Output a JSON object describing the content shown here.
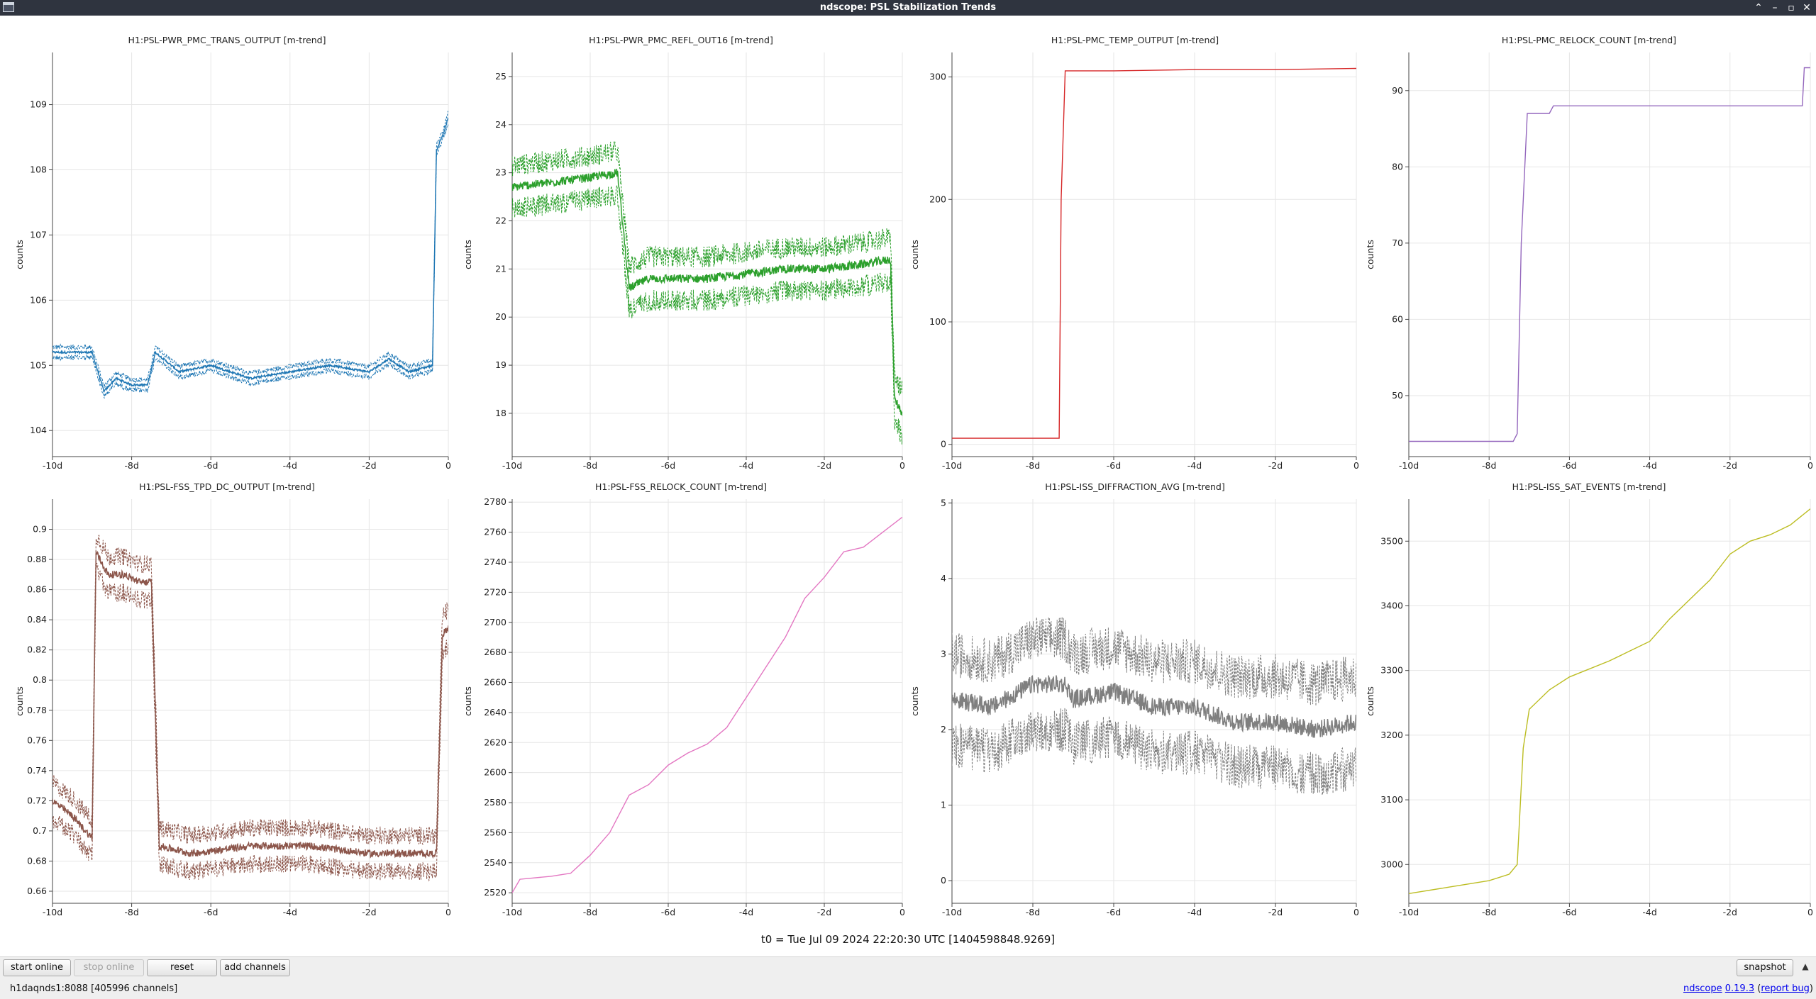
{
  "window": {
    "title": "ndscope: PSL Stabilization Trends",
    "buttons": [
      "⌃",
      "–",
      "▫",
      "✕"
    ]
  },
  "plots": [
    {
      "title": "H1:PSL-PWR_PMC_TRANS_OUTPUT [m-trend]",
      "ylabel": "counts",
      "color": "#1f77b4",
      "ylim": [
        103.6,
        109.8
      ],
      "yticks": [
        "104",
        "105",
        "106",
        "107",
        "108",
        "109"
      ],
      "xticks": [
        "-10d",
        "-8d",
        "-6d",
        "-4d",
        "-2d",
        "0"
      ]
    },
    {
      "title": "H1:PSL-PWR_PMC_REFL_OUT16 [m-trend]",
      "ylabel": "counts",
      "color": "#2ca02c",
      "ylim": [
        17.1,
        25.5
      ],
      "yticks": [
        "18",
        "19",
        "20",
        "21",
        "22",
        "23",
        "24",
        "25"
      ],
      "xticks": [
        "-10d",
        "-8d",
        "-6d",
        "-4d",
        "-2d",
        "0"
      ]
    },
    {
      "title": "H1:PSL-PMC_TEMP_OUTPUT [m-trend]",
      "ylabel": "counts",
      "color": "#d62728",
      "ylim": [
        -10,
        320
      ],
      "yticks": [
        "0",
        "100",
        "200",
        "300"
      ],
      "xticks": [
        "-10d",
        "-8d",
        "-6d",
        "-4d",
        "-2d",
        "0"
      ]
    },
    {
      "title": "H1:PSL-PMC_RELOCK_COUNT [m-trend]",
      "ylabel": "counts",
      "color": "#9467bd",
      "ylim": [
        42,
        95
      ],
      "yticks": [
        "50",
        "60",
        "70",
        "80",
        "90"
      ],
      "xticks": [
        "-10d",
        "-8d",
        "-6d",
        "-4d",
        "-2d",
        "0"
      ]
    },
    {
      "title": "H1:PSL-FSS_TPD_DC_OUTPUT [m-trend]",
      "ylabel": "counts",
      "color": "#8c564b",
      "ylim": [
        0.652,
        0.92
      ],
      "yticks": [
        "0.66",
        "0.68",
        "0.7",
        "0.72",
        "0.74",
        "0.76",
        "0.78",
        "0.8",
        "0.82",
        "0.84",
        "0.86",
        "0.88",
        "0.9"
      ],
      "xticks": [
        "-10d",
        "-8d",
        "-6d",
        "-4d",
        "-2d",
        "0"
      ]
    },
    {
      "title": "H1:PSL-FSS_RELOCK_COUNT [m-trend]",
      "ylabel": "counts",
      "color": "#e377c2",
      "ylim": [
        2513,
        2782
      ],
      "yticks": [
        "2520",
        "2540",
        "2560",
        "2580",
        "2600",
        "2620",
        "2640",
        "2660",
        "2680",
        "2700",
        "2720",
        "2740",
        "2760",
        "2780"
      ],
      "xticks": [
        "-10d",
        "-8d",
        "-6d",
        "-4d",
        "-2d",
        "0"
      ]
    },
    {
      "title": "H1:PSL-ISS_DIFFRACTION_AVG [m-trend]",
      "ylabel": "counts",
      "color": "#7f7f7f",
      "ylim": [
        -0.3,
        5.05
      ],
      "yticks": [
        "0",
        "1",
        "2",
        "3",
        "4",
        "5"
      ],
      "xticks": [
        "-10d",
        "-8d",
        "-6d",
        "-4d",
        "-2d",
        "0"
      ]
    },
    {
      "title": "H1:PSL-ISS_SAT_EVENTS [m-trend]",
      "ylabel": "counts",
      "color": "#bcbd22",
      "ylim": [
        2940,
        3565
      ],
      "yticks": [
        "3000",
        "3100",
        "3200",
        "3300",
        "3400",
        "3500"
      ],
      "xticks": [
        "-10d",
        "-8d",
        "-6d",
        "-4d",
        "-2d",
        "0"
      ]
    }
  ],
  "chart_data": [
    {
      "type": "line",
      "title": "H1:PSL-PWR_PMC_TRANS_OUTPUT [m-trend]",
      "ylabel": "counts",
      "xlim": [
        -10,
        0
      ],
      "ylim": [
        103.6,
        109.8
      ],
      "grid": true,
      "series": [
        {
          "x": [
            -10,
            -9.0,
            -8.7,
            -8.4,
            -8.0,
            -7.6,
            -7.4,
            -6.8,
            -6.0,
            -5.0,
            -4.0,
            -3.0,
            -2.0,
            -1.5,
            -1.0,
            -0.4,
            -0.3,
            -0.1,
            0
          ],
          "values": [
            105.2,
            105.2,
            104.6,
            104.8,
            104.7,
            104.7,
            105.2,
            104.9,
            105.0,
            104.8,
            104.9,
            105.0,
            104.9,
            105.1,
            104.9,
            105.0,
            108.3,
            108.6,
            108.8
          ]
        }
      ]
    },
    {
      "type": "line",
      "title": "H1:PSL-PWR_PMC_REFL_OUT16 [m-trend]",
      "ylabel": "counts",
      "xlim": [
        -10,
        0
      ],
      "ylim": [
        17.1,
        25.5
      ],
      "grid": true,
      "series": [
        {
          "x": [
            -10,
            -9.0,
            -8.0,
            -7.3,
            -7.0,
            -6.5,
            -6.0,
            -5.0,
            -4.0,
            -3.0,
            -2.0,
            -1.0,
            -0.3,
            -0.2,
            0
          ],
          "values": [
            22.7,
            22.8,
            22.9,
            23.0,
            20.6,
            20.8,
            20.8,
            20.8,
            20.9,
            21.0,
            21.0,
            21.1,
            21.2,
            18.3,
            18.0
          ]
        }
      ]
    },
    {
      "type": "line",
      "title": "H1:PSL-PMC_TEMP_OUTPUT [m-trend]",
      "ylabel": "counts",
      "xlim": [
        -10,
        0
      ],
      "ylim": [
        -10,
        320
      ],
      "grid": true,
      "series": [
        {
          "x": [
            -10,
            -8.0,
            -7.35,
            -7.3,
            -7.2,
            -6.0,
            -4.0,
            -2.0,
            0
          ],
          "values": [
            5,
            5,
            5,
            200,
            305,
            305,
            306,
            306,
            307
          ]
        }
      ]
    },
    {
      "type": "line",
      "title": "H1:PSL-PMC_RELOCK_COUNT [m-trend]",
      "ylabel": "counts",
      "xlim": [
        -10,
        0
      ],
      "ylim": [
        42,
        95
      ],
      "grid": true,
      "series": [
        {
          "x": [
            -10,
            -7.4,
            -7.3,
            -7.2,
            -7.05,
            -7.0,
            -6.5,
            -6.4,
            -3.0,
            -0.2,
            -0.15,
            0
          ],
          "values": [
            44,
            44,
            45,
            70,
            87,
            87,
            87,
            88,
            88,
            88,
            93,
            93
          ]
        }
      ]
    },
    {
      "type": "line",
      "title": "H1:PSL-FSS_TPD_DC_OUTPUT [m-trend]",
      "ylabel": "counts",
      "xlim": [
        -10,
        0
      ],
      "ylim": [
        0.652,
        0.92
      ],
      "grid": true,
      "series": [
        {
          "x": [
            -10,
            -9.5,
            -9.0,
            -8.9,
            -8.6,
            -8.2,
            -7.8,
            -7.5,
            -7.3,
            -6.5,
            -5.0,
            -3.5,
            -2.0,
            -0.7,
            -0.3,
            -0.15,
            0
          ],
          "values": [
            0.72,
            0.71,
            0.695,
            0.885,
            0.87,
            0.87,
            0.865,
            0.865,
            0.69,
            0.685,
            0.69,
            0.69,
            0.685,
            0.685,
            0.685,
            0.83,
            0.835
          ]
        }
      ]
    },
    {
      "type": "line",
      "title": "H1:PSL-FSS_RELOCK_COUNT [m-trend]",
      "ylabel": "counts",
      "xlim": [
        -10,
        0
      ],
      "ylim": [
        2513,
        2782
      ],
      "grid": true,
      "series": [
        {
          "x": [
            -10,
            -9.8,
            -9.0,
            -8.5,
            -8.0,
            -7.5,
            -7.0,
            -6.5,
            -6.0,
            -5.5,
            -5.0,
            -4.5,
            -4.0,
            -3.5,
            -3.0,
            -2.5,
            -2.0,
            -1.5,
            -1.0,
            -0.5,
            0
          ],
          "values": [
            2520,
            2529,
            2531,
            2533,
            2545,
            2560,
            2585,
            2592,
            2605,
            2613,
            2619,
            2630,
            2650,
            2670,
            2690,
            2716,
            2730,
            2747,
            2750,
            2760,
            2770
          ]
        }
      ]
    },
    {
      "type": "line",
      "title": "H1:PSL-ISS_DIFFRACTION_AVG [m-trend]",
      "ylabel": "counts",
      "xlim": [
        -10,
        0
      ],
      "ylim": [
        -0.3,
        5.05
      ],
      "grid": true,
      "series": [
        {
          "x": [
            -10,
            -9.0,
            -8.0,
            -7.2,
            -7.0,
            -6.0,
            -5.0,
            -4.0,
            -3.0,
            -2.0,
            -1.0,
            0
          ],
          "values": [
            2.4,
            2.3,
            2.6,
            2.6,
            2.4,
            2.5,
            2.3,
            2.3,
            2.1,
            2.1,
            2.0,
            2.1
          ]
        }
      ]
    },
    {
      "type": "line",
      "title": "H1:PSL-ISS_SAT_EVENTS [m-trend]",
      "ylabel": "counts",
      "xlim": [
        -10,
        0
      ],
      "ylim": [
        2940,
        3565
      ],
      "grid": true,
      "series": [
        {
          "x": [
            -10,
            -9.0,
            -8.0,
            -7.5,
            -7.3,
            -7.15,
            -7.0,
            -6.5,
            -6.0,
            -5.0,
            -4.5,
            -4.0,
            -3.5,
            -3.0,
            -2.5,
            -2.0,
            -1.5,
            -1.0,
            -0.5,
            0
          ],
          "values": [
            2955,
            2965,
            2975,
            2985,
            3000,
            3180,
            3240,
            3270,
            3290,
            3315,
            3330,
            3345,
            3380,
            3410,
            3440,
            3480,
            3500,
            3510,
            3525,
            3550
          ]
        }
      ]
    }
  ],
  "t0_label": "t0 = Tue Jul 09 2024 22:20:30 UTC [1404598848.9269]",
  "toolbar": {
    "start_online": "start online",
    "stop_online": "stop online",
    "reset": "reset",
    "add_channels": "add channels",
    "snapshot": "snapshot",
    "collapse": "▲"
  },
  "status": {
    "server": "h1daqnds1:8088  [405996 channels]",
    "app_name": "ndscope",
    "version": "0.19.3",
    "report_bug": "report bug"
  }
}
